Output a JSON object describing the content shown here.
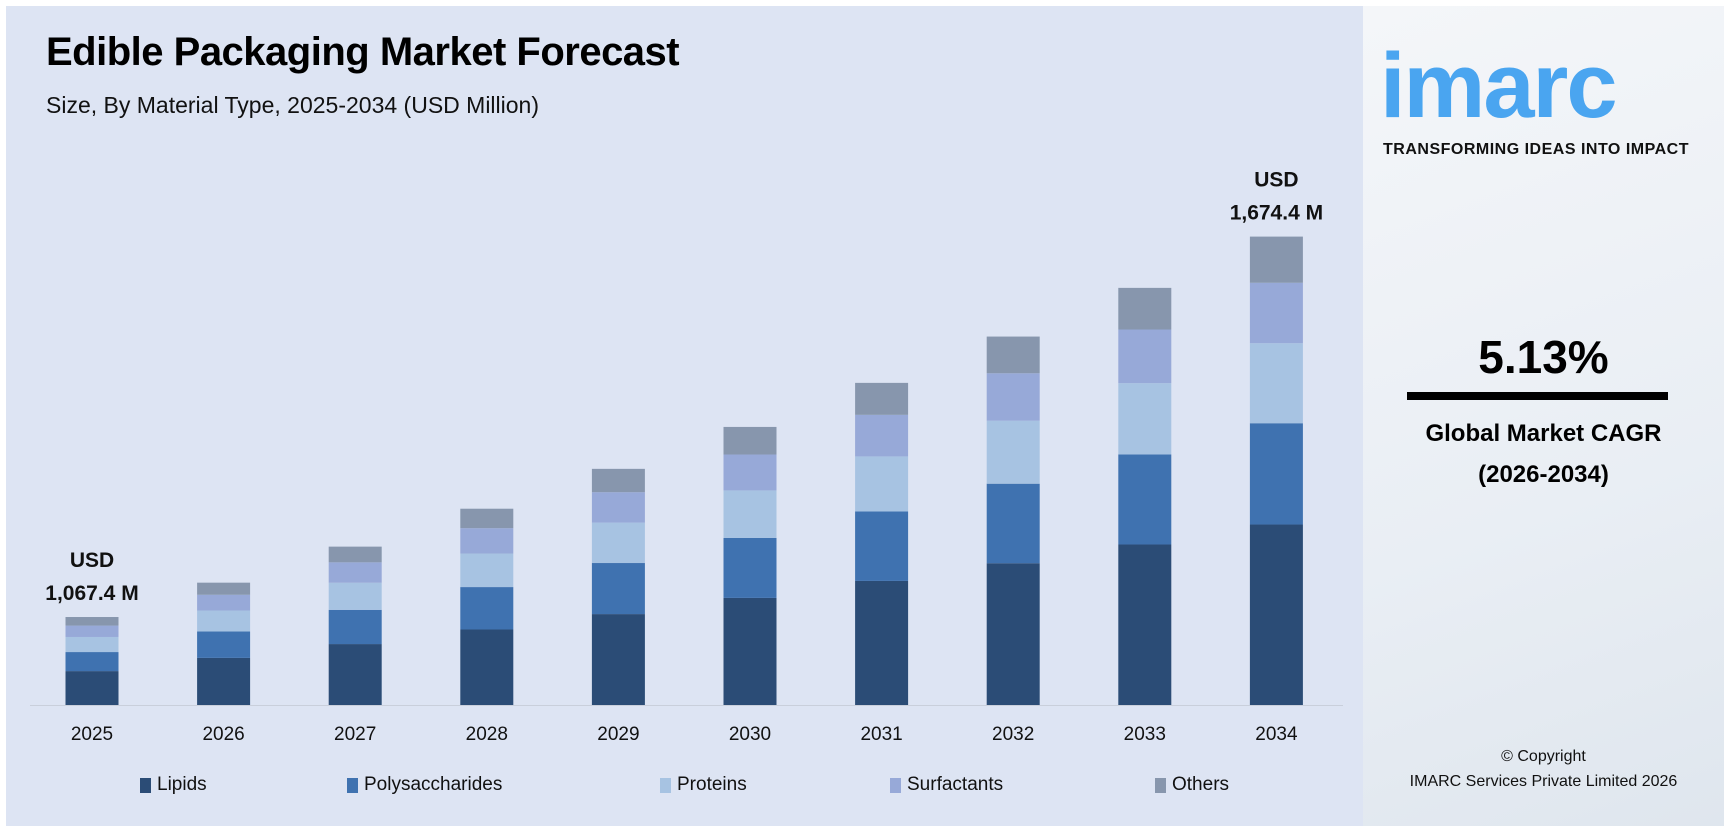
{
  "header": {
    "title": "Edible Packaging Market Forecast",
    "subtitle": "Size, By Material Type, 2025-2034 (USD Million)"
  },
  "brand": {
    "logo_text": "imarc",
    "tagline": "TRANSFORMING IDEAS INTO IMPACT",
    "color": "#4aa5f0"
  },
  "cagr": {
    "value": "5.13%",
    "label": "Global Market CAGR",
    "period": "(2026-2034)"
  },
  "copyright": {
    "line1": "© Copyright",
    "line2": "IMARC Services Private Limited 2026"
  },
  "chart_data": {
    "type": "bar",
    "stacked": true,
    "title": "Edible Packaging Market Forecast",
    "subtitle": "Size, By Material Type, 2025-2034 (USD Million)",
    "categories": [
      "2025",
      "2026",
      "2027",
      "2028",
      "2029",
      "2030",
      "2031",
      "2032",
      "2033",
      "2034"
    ],
    "totals": [
      1067.4,
      1122.2,
      1179.7,
      1240.2,
      1303.8,
      1370.7,
      1441.0,
      1514.9,
      1592.6,
      1674.4
    ],
    "total_labels": {
      "2025": [
        "USD",
        "1,067.4 M"
      ],
      "2034": [
        "USD",
        "1,674.4 M"
      ]
    },
    "series": [
      {
        "name": "Lipids",
        "color": "#2b4c76",
        "values": [
          411,
          432,
          454,
          477,
          502,
          528,
          555,
          583,
          613,
          645
        ]
      },
      {
        "name": "Polysaccharides",
        "color": "#3f72b0",
        "values": [
          231,
          242,
          255,
          268,
          282,
          296,
          311,
          327,
          344,
          362
        ]
      },
      {
        "name": "Proteins",
        "color": "#a7c3e2",
        "values": [
          183,
          192,
          202,
          212,
          223,
          234,
          246,
          259,
          272,
          286
        ]
      },
      {
        "name": "Surfactants",
        "color": "#97a9d8",
        "values": [
          138,
          145,
          152,
          160,
          168,
          177,
          186,
          195,
          205,
          216
        ]
      },
      {
        "name": "Others",
        "color": "#8796ad",
        "values": [
          104,
          111,
          117,
          123,
          129,
          136,
          143,
          151,
          159,
          165
        ]
      }
    ],
    "legend": "bottom",
    "grid": false,
    "y_axis_visible": false
  }
}
